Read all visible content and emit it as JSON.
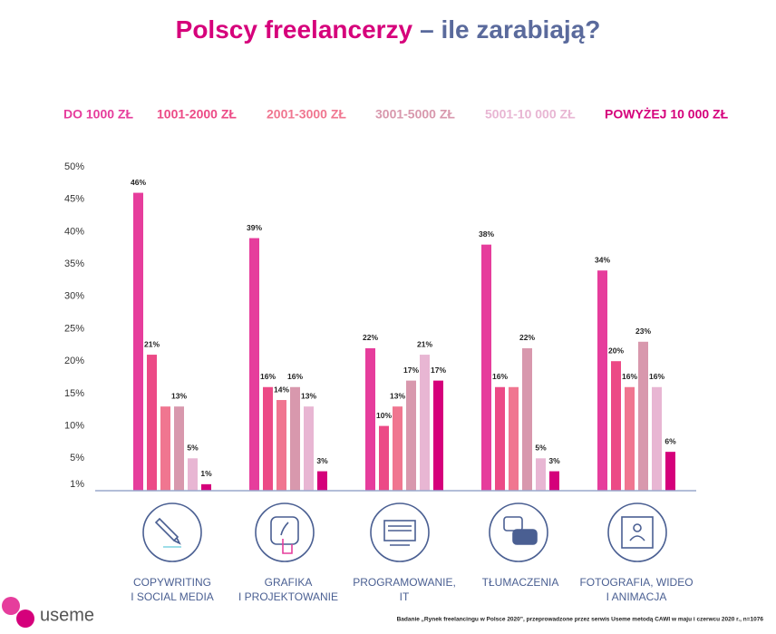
{
  "chart_data": {
    "type": "bar",
    "title": [
      "Polscy freelancerzy",
      "– ile zarabiają?"
    ],
    "categories": [
      [
        "COPYWRITING",
        "I SOCIAL MEDIA"
      ],
      [
        "GRAFIKA",
        "I PROJEKTOWANIE"
      ],
      [
        "PROGRAMOWANIE,",
        "IT"
      ],
      [
        "TŁUMACZENIA"
      ],
      [
        "FOTOGRAFIA, WIDEO",
        "I ANIMACJA"
      ]
    ],
    "series": [
      {
        "name": "DO 1000 ZŁ",
        "color": "#e63d9c",
        "values": [
          46,
          39,
          22,
          38,
          34
        ],
        "value_labels": [
          "46%",
          "39%",
          "22%",
          "38%",
          "34%"
        ]
      },
      {
        "name": "1001-2000 ZŁ",
        "color": "#ec4a86",
        "values": [
          21,
          16,
          10,
          16,
          20
        ],
        "value_labels": [
          "21%",
          "16%",
          "10%",
          "16%",
          "20%"
        ]
      },
      {
        "name": "2001-3000 ZŁ",
        "color": "#f07690",
        "values": [
          13,
          14,
          13,
          16,
          16
        ],
        "value_labels": [
          null,
          "14%",
          "13%",
          null,
          "16%"
        ]
      },
      {
        "name": "3001-5000 ZŁ",
        "color": "#d898ad",
        "values": [
          13,
          16,
          17,
          22,
          23
        ],
        "value_labels": [
          "13%",
          "16%",
          "17%",
          "22%",
          "23%"
        ]
      },
      {
        "name": "5001-10 000 ZŁ",
        "color": "#e8b6d3",
        "values": [
          5,
          13,
          21,
          5,
          16
        ],
        "value_labels": [
          "5%",
          "13%",
          "21%",
          "5%",
          "16%"
        ]
      },
      {
        "name": "POWYŻEJ 10 000 ZŁ",
        "color": "#d5007b",
        "values": [
          1,
          3,
          17,
          3,
          6
        ],
        "value_labels": [
          "1%",
          "3%",
          "17%",
          "3%",
          "6%"
        ]
      }
    ],
    "ylim": [
      0,
      50
    ],
    "yticks": [
      {
        "value": 1,
        "label": "1%"
      },
      {
        "value": 5,
        "label": "5%"
      },
      {
        "value": 10,
        "label": "10%"
      },
      {
        "value": 15,
        "label": "15%"
      },
      {
        "value": 20,
        "label": "20%"
      },
      {
        "value": 25,
        "label": "25%"
      },
      {
        "value": 30,
        "label": "30%"
      },
      {
        "value": 35,
        "label": "35%"
      },
      {
        "value": 40,
        "label": "40%"
      },
      {
        "value": 45,
        "label": "45%"
      },
      {
        "value": 50,
        "label": "50%"
      }
    ],
    "logo": "useme",
    "note": "Badanie „Rynek freelancingu w Polsce 2020”, przeprowadzone przez serwis Useme metodą CAWI w maju i czerwcu 2020 r., n=1076"
  }
}
